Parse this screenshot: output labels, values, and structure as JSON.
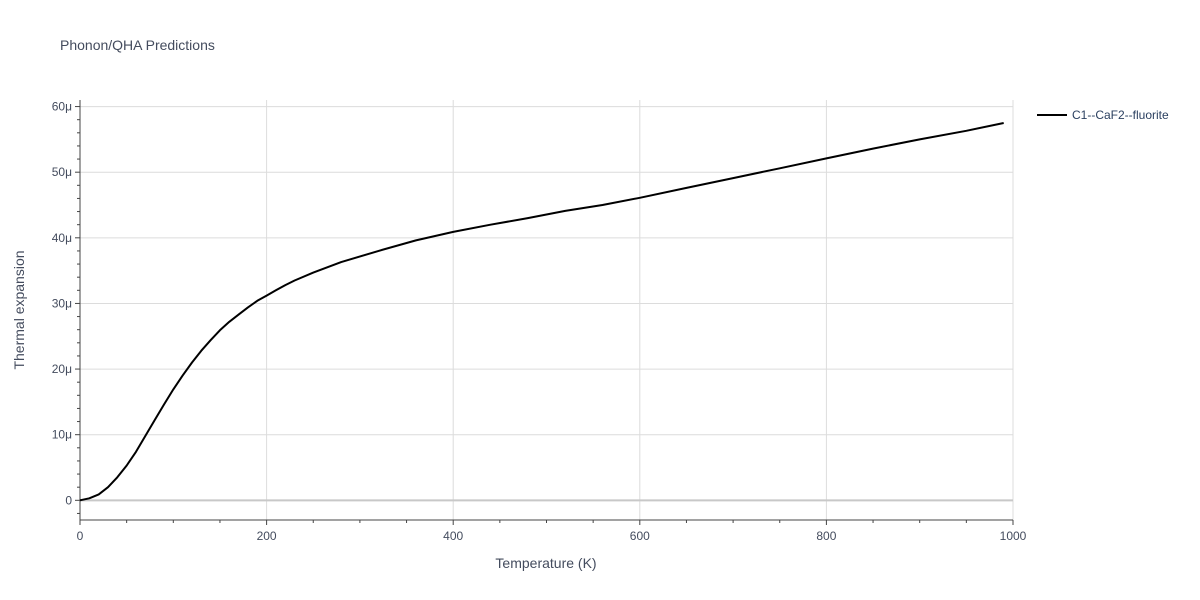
{
  "chart_data": {
    "type": "line",
    "title": "Phonon/QHA Predictions",
    "xlabel": "Temperature (K)",
    "ylabel": "Thermal expansion",
    "xlim": [
      0,
      1000
    ],
    "ylim": [
      -3e-06,
      6.1e-05
    ],
    "x_ticks": [
      0,
      200,
      400,
      600,
      800,
      1000
    ],
    "x_tick_labels": [
      "0",
      "200",
      "400",
      "600",
      "800",
      "1000"
    ],
    "y_ticks": [
      0,
      1e-05,
      2e-05,
      3e-05,
      4e-05,
      5e-05,
      6e-05
    ],
    "y_tick_labels": [
      "0",
      "10μ",
      "20μ",
      "30μ",
      "40μ",
      "50μ",
      "60μ"
    ],
    "grid": true,
    "legend_position": "top-right",
    "series": [
      {
        "name": "C1--CaF2--fluorite",
        "color": "#000000",
        "x": [
          0,
          10,
          20,
          30,
          40,
          50,
          60,
          70,
          80,
          90,
          100,
          110,
          120,
          130,
          140,
          150,
          160,
          170,
          180,
          190,
          200,
          210,
          220,
          230,
          250,
          280,
          320,
          360,
          400,
          440,
          480,
          520,
          560,
          600,
          650,
          700,
          750,
          800,
          850,
          900,
          950,
          990
        ],
        "y": [
          0,
          3e-07,
          9e-07,
          2e-06,
          3.5e-06,
          5.3e-06,
          7.4e-06,
          9.8e-06,
          1.22e-05,
          1.46e-05,
          1.69e-05,
          1.9e-05,
          2.1e-05,
          2.28e-05,
          2.44e-05,
          2.59e-05,
          2.72e-05,
          2.83e-05,
          2.94e-05,
          3.04e-05,
          3.12e-05,
          3.2e-05,
          3.28e-05,
          3.35e-05,
          3.47e-05,
          3.63e-05,
          3.8e-05,
          3.96e-05,
          4.09e-05,
          4.2e-05,
          4.3e-05,
          4.41e-05,
          4.5e-05,
          4.61e-05,
          4.76e-05,
          4.91e-05,
          5.06e-05,
          5.21e-05,
          5.36e-05,
          5.5e-05,
          5.63e-05,
          5.75e-05
        ]
      }
    ]
  }
}
